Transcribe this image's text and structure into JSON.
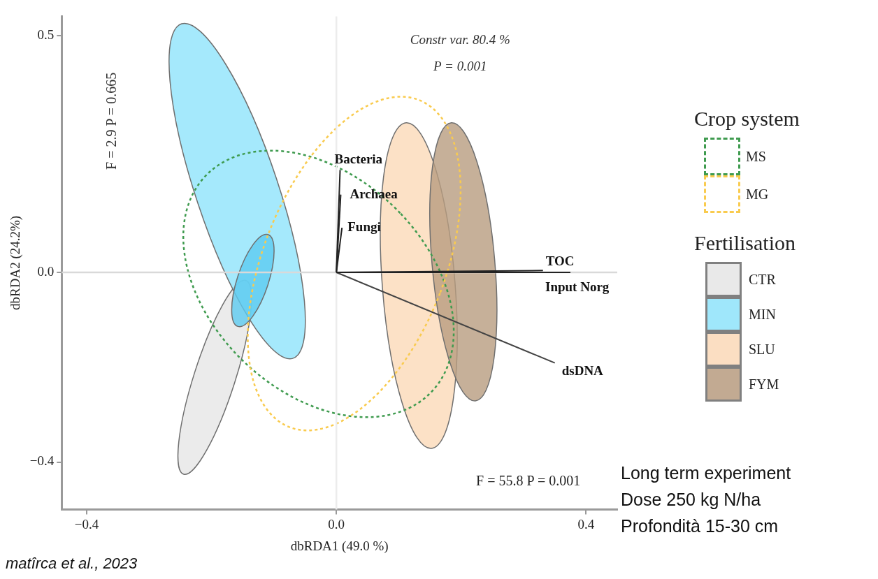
{
  "chart_data": {
    "type": "line",
    "xlabel": "dbRDA1 (49.0 %)",
    "ylabel": "dbRDA2 (24.2%)",
    "xlim": [
      -0.44,
      0.45
    ],
    "ylim": [
      -0.5,
      0.54
    ],
    "xticks": [
      {
        "value": -0.4,
        "label": "−0.4"
      },
      {
        "value": 0,
        "label": "0.0"
      },
      0.4
    ],
    "yticks": [
      {
        "value": -0.4,
        "label": "−0.4"
      },
      {
        "value": 0,
        "label": "0.0"
      },
      0.5
    ],
    "ref_lines": [
      {
        "axis": "x",
        "value": 0,
        "color": "#ececec"
      },
      {
        "axis": "y",
        "value": 0,
        "color": "#d9d9d9"
      }
    ],
    "annotations": [
      "Constr var. 80.4 %",
      "P = 0.001",
      "F = 2.9 P = 0.665",
      "F = 55.8 P = 0.001",
      "Crop system",
      "MS",
      "MG",
      "Fertilisation",
      "CTR",
      "MIN",
      "SLU",
      "FYM",
      "Long term experiment",
      "Dose 250 kg N/ha",
      "Profondità 15-30 cm",
      "matîrca et al., 2023"
    ],
    "series": [
      {
        "name": "Bacteria",
        "color": "#222222",
        "x": [
          0,
          0.006
        ],
        "values": [
          0,
          0.216
        ]
      },
      {
        "name": "Archaea",
        "color": "#222222",
        "x": [
          0,
          0.007
        ],
        "values": [
          0,
          0.164
        ]
      },
      {
        "name": "Fungi",
        "color": "#222222",
        "x": [
          0,
          0.009
        ],
        "values": [
          0,
          0.094
        ]
      },
      {
        "name": "TOC",
        "color": "#222222",
        "x": [
          0,
          0.331
        ],
        "values": [
          0,
          0.004
        ]
      },
      {
        "name": "Input Norg",
        "color": "#222222",
        "x": [
          0,
          0.375
        ],
        "values": [
          0,
          0
        ]
      },
      {
        "name": "dsDNA",
        "color": "#444444",
        "x": [
          0,
          0.35
        ],
        "values": [
          0,
          -0.191
        ]
      }
    ]
  }
}
